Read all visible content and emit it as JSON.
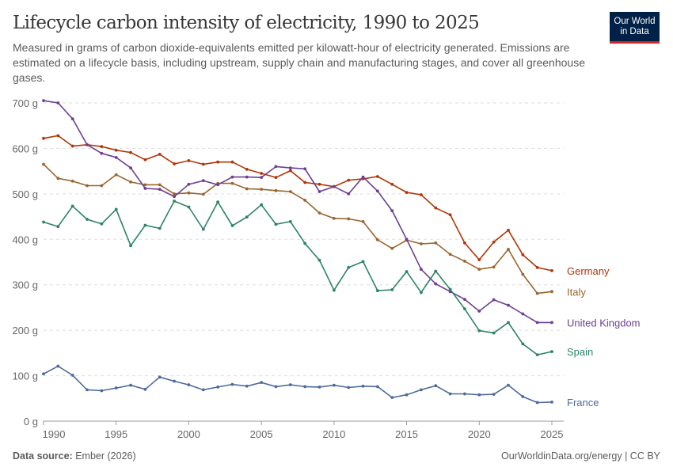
{
  "header": {
    "title": "Lifecycle carbon intensity of electricity, 1990 to 2025",
    "subtitle": "Measured in grams of carbon dioxide-equivalents emitted per kilowatt-hour of electricity generated. Emissions are estimated on a lifecycle basis, including upstream, supply chain and manufacturing stages, and cover all greenhouse gases.",
    "logo_line1": "Our World",
    "logo_line2": "in Data"
  },
  "footer": {
    "source_label": "Data source:",
    "source_value": "Ember (2026)",
    "right": "OurWorldinData.org/energy | CC BY"
  },
  "chart_data": {
    "type": "line",
    "title": "Lifecycle carbon intensity of electricity, 1990 to 2025",
    "xlabel": "",
    "ylabel": "",
    "ylim": [
      0,
      700
    ],
    "xlim": [
      1990,
      2025
    ],
    "grid": true,
    "legend": "right (inline line labels)",
    "y_ticks": [
      0,
      100,
      200,
      300,
      400,
      500,
      600,
      700
    ],
    "y_tick_labels": [
      "0 g",
      "100 g",
      "200 g",
      "300 g",
      "400 g",
      "500 g",
      "600 g",
      "700 g"
    ],
    "x_ticks": [
      1990,
      1995,
      2000,
      2005,
      2010,
      2015,
      2020,
      2025
    ],
    "x_tick_labels": [
      "1990",
      "1995",
      "2000",
      "2005",
      "2010",
      "2015",
      "2020",
      "2025"
    ],
    "x": [
      1990,
      1991,
      1992,
      1993,
      1994,
      1995,
      1996,
      1997,
      1998,
      1999,
      2000,
      2001,
      2002,
      2003,
      2004,
      2005,
      2006,
      2007,
      2008,
      2009,
      2010,
      2011,
      2012,
      2013,
      2014,
      2015,
      2016,
      2017,
      2018,
      2019,
      2020,
      2021,
      2022,
      2023,
      2024,
      2025
    ],
    "series": [
      {
        "name": "Germany",
        "color": "#b13507",
        "values": [
          622,
          628,
          605,
          608,
          604,
          596,
          591,
          575,
          587,
          566,
          573,
          565,
          570,
          570,
          554,
          545,
          536,
          551,
          525,
          521,
          516,
          530,
          533,
          538,
          521,
          503,
          498,
          469,
          454,
          392,
          355,
          394,
          420,
          366,
          338,
          331
        ]
      },
      {
        "name": "Italy",
        "color": "#9a652e",
        "values": [
          565,
          534,
          528,
          518,
          518,
          542,
          526,
          520,
          520,
          500,
          502,
          499,
          523,
          523,
          511,
          510,
          507,
          505,
          486,
          458,
          446,
          445,
          439,
          399,
          380,
          398,
          390,
          392,
          367,
          352,
          334,
          339,
          378,
          323,
          281,
          285
        ]
      },
      {
        "name": "United Kingdom",
        "color": "#6d3e91",
        "values": [
          705,
          700,
          665,
          608,
          589,
          580,
          557,
          512,
          510,
          494,
          521,
          529,
          520,
          537,
          537,
          536,
          560,
          557,
          555,
          505,
          516,
          500,
          537,
          506,
          463,
          400,
          334,
          302,
          285,
          268,
          242,
          267,
          255,
          236,
          217,
          217
        ]
      },
      {
        "name": "Spain",
        "color": "#2c8465",
        "values": [
          438,
          428,
          473,
          444,
          434,
          466,
          386,
          431,
          424,
          484,
          471,
          422,
          482,
          430,
          449,
          476,
          433,
          439,
          391,
          354,
          288,
          338,
          351,
          287,
          289,
          329,
          283,
          330,
          290,
          247,
          199,
          194,
          217,
          170,
          146,
          153
        ]
      },
      {
        "name": "France",
        "color": "#4c6a9c",
        "values": [
          104,
          121,
          101,
          69,
          67,
          73,
          79,
          70,
          97,
          88,
          80,
          69,
          75,
          81,
          77,
          85,
          76,
          80,
          76,
          75,
          79,
          74,
          77,
          76,
          52,
          58,
          69,
          78,
          60,
          60,
          58,
          59,
          79,
          54,
          41,
          42
        ]
      }
    ]
  }
}
